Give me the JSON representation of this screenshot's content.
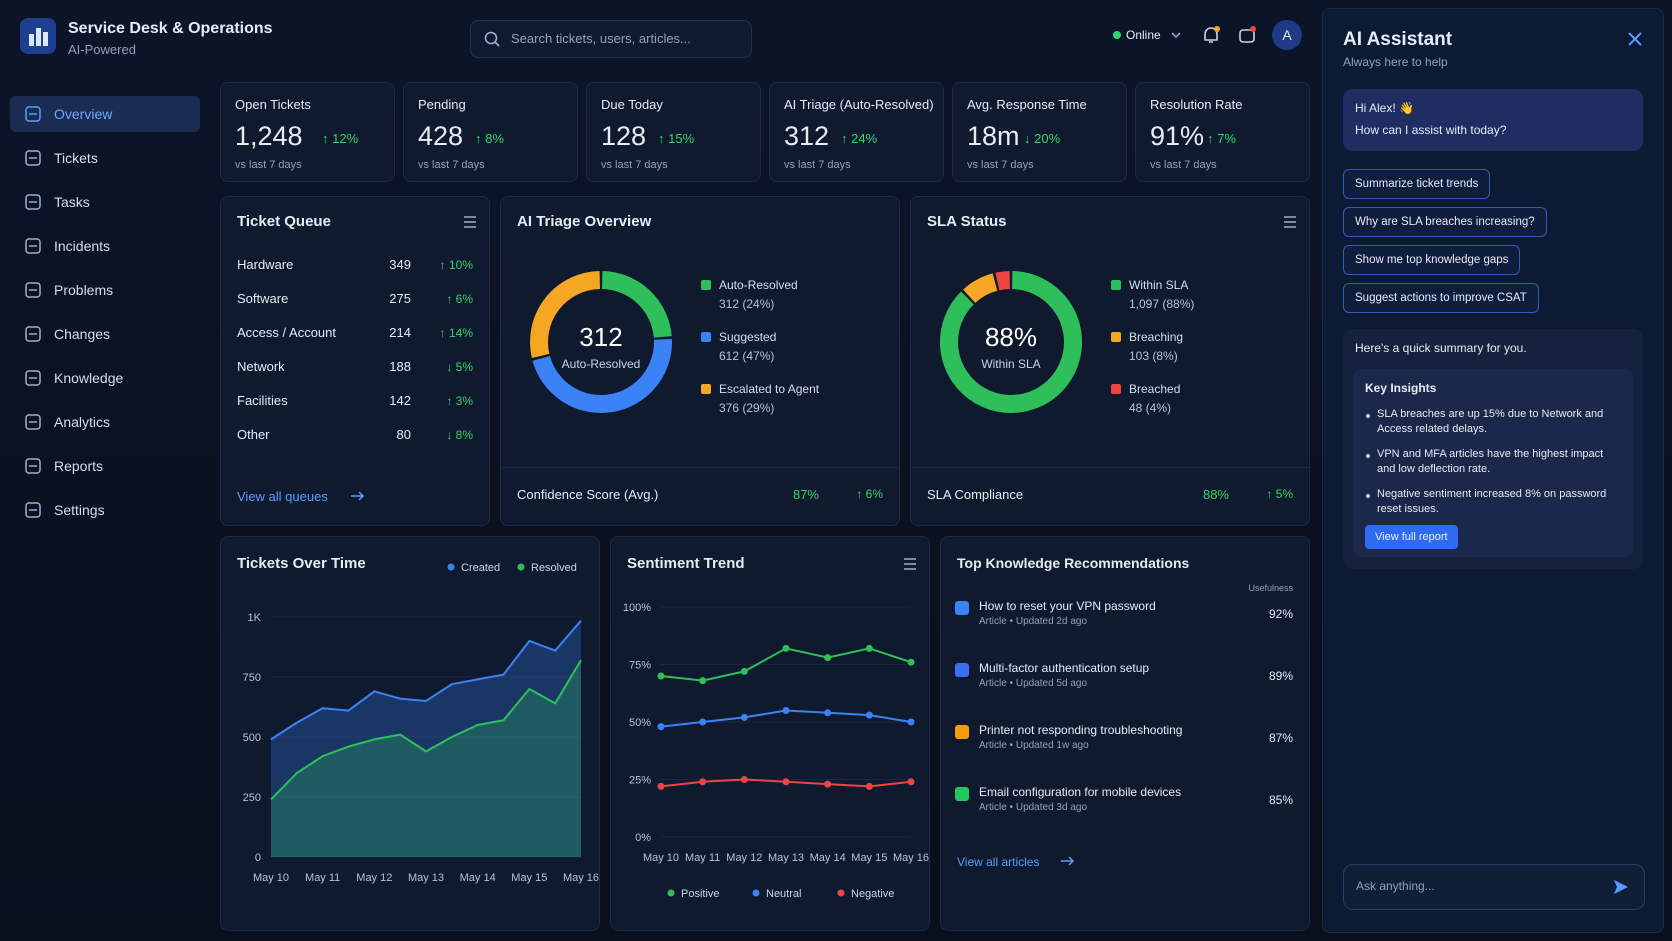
{
  "header": {
    "title": "Service Desk & Operations",
    "subtitle": "AI-Powered",
    "search": "Search tickets, users, articles...",
    "status": "Online",
    "avatar": "A"
  },
  "nav": {
    "items": [
      "Overview",
      "Tickets",
      "Tasks",
      "Incidents",
      "Problems",
      "Changes",
      "Knowledge",
      "Analytics",
      "Reports",
      "Settings"
    ],
    "active": 0
  },
  "kpis": [
    {
      "label": "Open Tickets",
      "value": "1,248",
      "change": "↑ 12%",
      "note": "vs last 7 days"
    },
    {
      "label": "Pending",
      "value": "428",
      "change": "↑ 8%",
      "note": "vs last 7 days"
    },
    {
      "label": "Due Today",
      "value": "128",
      "change": "↑ 15%",
      "note": "vs last 7 days"
    },
    {
      "label": "AI Triage (Auto-Resolved)",
      "value": "312",
      "change": "↑ 24%",
      "note": "vs last 7 days"
    },
    {
      "label": "Avg. Response Time",
      "value": "18m",
      "change": "↓ 20%",
      "note": "vs last 7 days"
    },
    {
      "label": "Resolution Rate",
      "value": "91%",
      "change": "↑ 7%",
      "note": "vs last 7 days"
    }
  ],
  "ticket_queue": {
    "title": "Ticket Queue",
    "rows": [
      {
        "name": "Hardware",
        "count": "349",
        "change": "↑ 10%"
      },
      {
        "name": "Software",
        "count": "275",
        "change": "↑ 6%"
      },
      {
        "name": "Access / Account",
        "count": "214",
        "change": "↑ 14%"
      },
      {
        "name": "Network",
        "count": "188",
        "change": "↓ 5%"
      },
      {
        "name": "Facilities",
        "count": "142",
        "change": "↑ 3%"
      },
      {
        "name": "Other",
        "count": "80",
        "change": "↓ 8%"
      }
    ],
    "link": "View all queues"
  },
  "ai_triage": {
    "title": "AI Triage Overview",
    "chart": {
      "type": "donut",
      "center_value": "312",
      "center_label": "Auto-Resolved",
      "categories": [
        "Auto-Resolved",
        "Suggested",
        "Escalated to Agent"
      ],
      "values": [
        312,
        612,
        376
      ],
      "value_labels": [
        "312 (24%)",
        "612 (47%)",
        "376 (29%)"
      ],
      "colors": [
        "#2fbf5a",
        "#3b82f6",
        "#f5a623"
      ]
    },
    "footer": {
      "label": "Confidence Score (Avg.)",
      "value": "87%",
      "change": "↑ 6%"
    }
  },
  "sla_status": {
    "title": "SLA Status",
    "chart": {
      "type": "donut",
      "center_value": "88%",
      "center_label": "Within SLA",
      "categories": [
        "Within SLA",
        "Breaching",
        "Breached"
      ],
      "values": [
        1097,
        103,
        48
      ],
      "value_labels": [
        "1,097 (88%)",
        "103 (8%)",
        "48 (4%)"
      ],
      "colors": [
        "#2fbf5a",
        "#f5a623",
        "#ef4444"
      ]
    },
    "footer": {
      "label": "SLA Compliance",
      "value": "88%",
      "change": "↑ 5%"
    }
  },
  "tickets_over_time": {
    "title": "Tickets Over Time",
    "chart": {
      "type": "area",
      "categories": [
        "May 10",
        null,
        "May 11",
        null,
        "May 12",
        null,
        "May 13",
        null,
        "May 14",
        null,
        "May 15",
        null,
        "May 16"
      ],
      "series": [
        {
          "name": "Created",
          "color": "#3b82f6",
          "values": [
            490,
            560,
            620,
            610,
            690,
            660,
            650,
            720,
            740,
            760,
            900,
            860,
            985
          ]
        },
        {
          "name": "Resolved",
          "color": "#2fbf5a",
          "values": [
            240,
            350,
            420,
            460,
            490,
            510,
            440,
            500,
            550,
            570,
            700,
            640,
            820
          ]
        }
      ],
      "ylim": [
        0,
        1000
      ],
      "yticks": [
        0,
        250,
        500,
        750,
        {
          "value": 1000,
          "label": "1K"
        }
      ],
      "legend": "top-right"
    }
  },
  "sentiment_trend": {
    "title": "Sentiment Trend",
    "chart": {
      "type": "line",
      "categories": [
        "May 10",
        "May 11",
        "May 12",
        "May 13",
        "May 14",
        "May 15",
        "May 16"
      ],
      "series": [
        {
          "name": "Positive",
          "color": "#2fbf5a",
          "values": [
            70,
            68,
            72,
            82,
            78,
            82,
            76
          ]
        },
        {
          "name": "Neutral",
          "color": "#3b82f6",
          "values": [
            48,
            50,
            52,
            55,
            54,
            53,
            50
          ]
        },
        {
          "name": "Negative",
          "color": "#ef4444",
          "values": [
            22,
            24,
            25,
            24,
            23,
            22,
            24
          ]
        }
      ],
      "ylim": [
        0,
        100
      ],
      "yticks": [
        {
          "value": 0,
          "label": "0%"
        },
        {
          "value": 25,
          "label": "25%"
        },
        {
          "value": 50,
          "label": "50%"
        },
        {
          "value": 75,
          "label": "75%"
        },
        {
          "value": 100,
          "label": "100%"
        }
      ],
      "legend": "bottom"
    }
  },
  "knowledge": {
    "title": "Top Knowledge Recommendations",
    "column": "Usefulness",
    "items": [
      {
        "title": "How to reset your VPN password",
        "meta": "Article • Updated 2d ago",
        "score": "92%",
        "icon_color": "#3b82f6"
      },
      {
        "title": "Multi-factor authentication setup",
        "meta": "Article • Updated 5d ago",
        "score": "89%",
        "icon_color": "#3b6df6"
      },
      {
        "title": "Printer not responding troubleshooting",
        "meta": "Article • Updated 1w ago",
        "score": "87%",
        "icon_color": "#f59e0b"
      },
      {
        "title": "Email configuration for mobile devices",
        "meta": "Article • Updated 3d ago",
        "score": "85%",
        "icon_color": "#22c55e"
      }
    ],
    "link": "View all articles"
  },
  "assistant": {
    "title": "AI Assistant",
    "subtitle": "Always here to help",
    "greeting": [
      "Hi Alex! 👋",
      "How can I assist with today?"
    ],
    "suggestions": [
      "Summarize ticket trends",
      "Why are SLA breaches increasing?",
      "Show me top knowledge gaps",
      "Suggest actions to improve CSAT"
    ],
    "summary": "Here's a quick summary for you.",
    "insights_title": "Key Insights",
    "insights": [
      "SLA breaches are up 15% due to Network and Access related delays.",
      "VPN and MFA articles have the highest impact and low deflection rate.",
      "Negative sentiment increased 8% on password reset issues."
    ],
    "button": "View full report",
    "input": "Ask anything..."
  }
}
